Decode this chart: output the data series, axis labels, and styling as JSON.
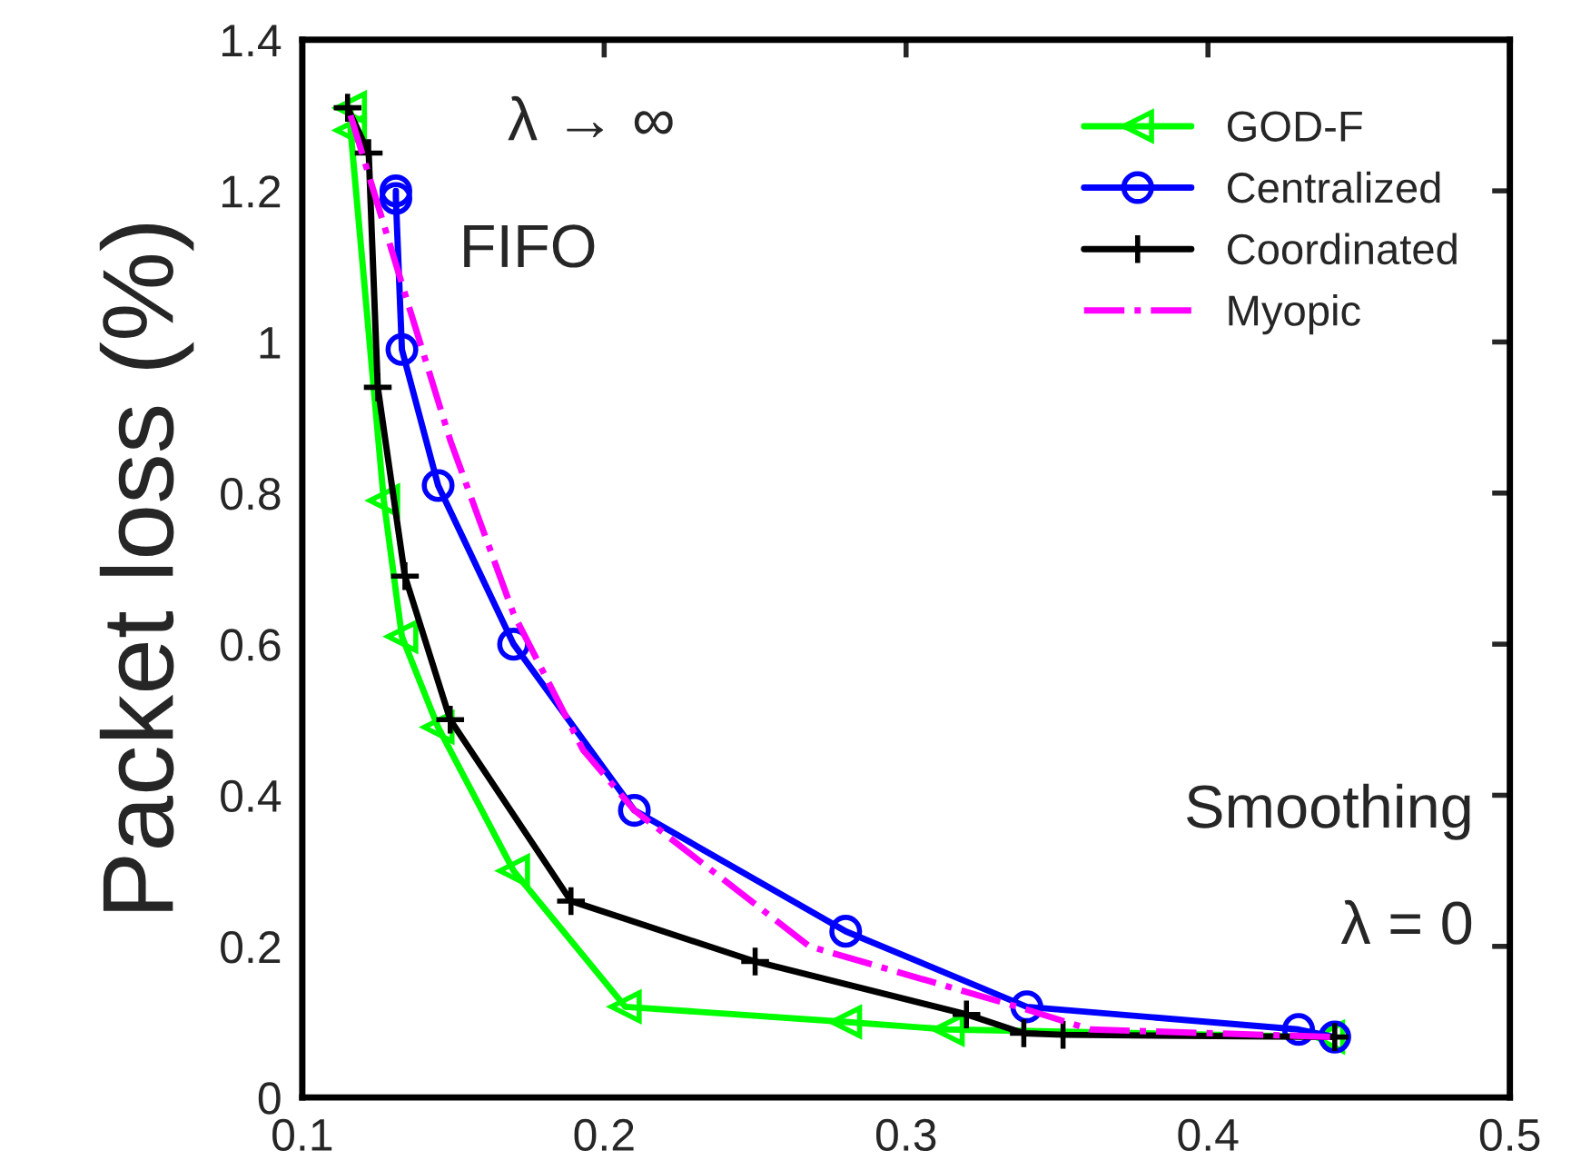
{
  "chart_data": {
    "type": "line",
    "ylabel": "Packet loss (%)",
    "annotations": [
      "λ → ∞",
      "FIFO",
      "Smoothing",
      "λ = 0"
    ],
    "xlim": [
      0.1,
      0.5
    ],
    "xticks": [
      0.1,
      0.2,
      0.3,
      0.4,
      0.5
    ],
    "ylim": [
      0,
      1.4
    ],
    "yticks": [
      0,
      0.2,
      0.4,
      0.6,
      0.8,
      1,
      1.2,
      1.4
    ],
    "grid": false,
    "legend": "top right",
    "series": [
      {
        "name": "GOD-F",
        "color": "#00ff00",
        "marker": "triangle",
        "line_style": "solid",
        "x": [
          0.116,
          0.116,
          0.127,
          0.133,
          0.145,
          0.17,
          0.207,
          0.28,
          0.314,
          0.44
        ],
        "values": [
          1.31,
          1.28,
          0.79,
          0.61,
          0.49,
          0.3,
          0.12,
          0.1,
          0.09,
          0.08
        ]
      },
      {
        "name": "Centralized",
        "color": "#0000ff",
        "marker": "circle",
        "line_style": "solid",
        "x": [
          0.131,
          0.131,
          0.133,
          0.145,
          0.17,
          0.21,
          0.28,
          0.34,
          0.43,
          0.442
        ],
        "values": [
          1.2,
          1.19,
          0.99,
          0.81,
          0.6,
          0.38,
          0.22,
          0.12,
          0.09,
          0.08
        ]
      },
      {
        "name": "Coordinated",
        "color": "#000000",
        "marker": "cross",
        "line_style": "solid",
        "x": [
          0.115,
          0.122,
          0.125,
          0.134,
          0.149,
          0.189,
          0.25,
          0.32,
          0.339,
          0.352,
          0.442
        ],
        "values": [
          1.31,
          1.25,
          0.94,
          0.69,
          0.5,
          0.26,
          0.18,
          0.11,
          0.085,
          0.083,
          0.08
        ]
      },
      {
        "name": "Myopic",
        "color": "#ff00ff",
        "marker": "none",
        "line_style": "dashdot",
        "x": [
          0.116,
          0.132,
          0.149,
          0.17,
          0.193,
          0.21,
          0.268,
          0.337,
          0.361,
          0.442
        ],
        "values": [
          1.3,
          1.09,
          0.87,
          0.64,
          0.46,
          0.38,
          0.2,
          0.12,
          0.09,
          0.08
        ]
      }
    ]
  }
}
